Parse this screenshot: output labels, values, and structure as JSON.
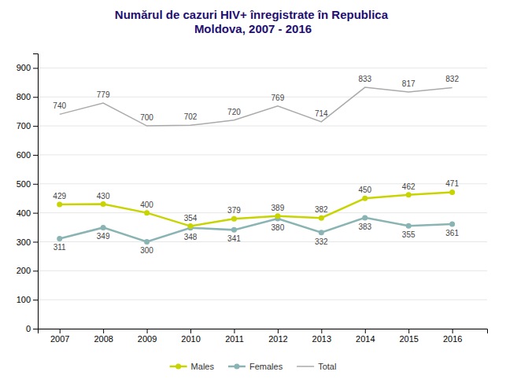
{
  "chart_data": {
    "type": "line",
    "title": "Numărul de cazuri HIV+ înregistrate în Republica\nMoldova, 2007 - 2016",
    "title_color": "#1f1070",
    "x": [
      2007,
      2008,
      2009,
      2010,
      2011,
      2012,
      2013,
      2014,
      2015,
      2016
    ],
    "series": [
      {
        "name": "Males",
        "color": "#c8d400",
        "marker": "circle",
        "values": [
          429,
          430,
          400,
          354,
          379,
          389,
          382,
          450,
          462,
          471
        ]
      },
      {
        "name": "Females",
        "color": "#8ab4b4",
        "marker": "circle",
        "values": [
          311,
          349,
          300,
          348,
          341,
          380,
          332,
          383,
          355,
          361
        ]
      },
      {
        "name": "Total",
        "color": "#aaaaaa",
        "values": [
          740,
          779,
          700,
          702,
          720,
          769,
          714,
          833,
          817,
          832
        ]
      }
    ],
    "xlim": [
      2006.5,
      2016.8
    ],
    "xticks": [
      2007,
      2008,
      2009,
      2010,
      2011,
      2012,
      2013,
      2014,
      2015,
      2016
    ],
    "ylim": [
      0,
      950
    ],
    "yticks": [
      0,
      100,
      200,
      300,
      400,
      500,
      600,
      700,
      800,
      900
    ],
    "grid": true,
    "legend": "bottom",
    "data_labels": true
  }
}
